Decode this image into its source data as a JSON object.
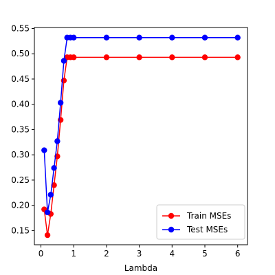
{
  "chart_data": {
    "type": "line",
    "title": "",
    "xlabel": "Lambda",
    "ylabel": "",
    "xlim": [
      -0.2,
      6.3
    ],
    "ylim": [
      0.122,
      0.552
    ],
    "xticks": [
      0,
      1,
      2,
      3,
      4,
      5,
      6
    ],
    "yticks": [
      0.15,
      0.2,
      0.25,
      0.3,
      0.35,
      0.4,
      0.45,
      0.5,
      0.55
    ],
    "xtick_labels": [
      "0",
      "1",
      "2",
      "3",
      "4",
      "5",
      "6"
    ],
    "ytick_labels": [
      "0.15",
      "0.20",
      "0.25",
      "0.30",
      "0.35",
      "0.40",
      "0.45",
      "0.50",
      "0.55"
    ],
    "grid": false,
    "legend_position": "lower-right",
    "x": [
      0.1,
      0.2,
      0.3,
      0.4,
      0.5,
      0.6,
      0.7,
      0.8,
      0.9,
      1,
      2,
      3,
      4,
      5,
      6
    ],
    "series": [
      {
        "name": "Train MSEs",
        "color": "#ff0000",
        "marker": "circle",
        "values": [
          0.192,
          0.141,
          0.183,
          0.24,
          0.297,
          0.369,
          0.447,
          0.493,
          0.493,
          0.493,
          0.493,
          0.493,
          0.493,
          0.493,
          0.493
        ]
      },
      {
        "name": "Test MSEs",
        "color": "#0000ff",
        "marker": "circle",
        "values": [
          0.309,
          0.186,
          0.221,
          0.274,
          0.327,
          0.403,
          0.486,
          0.532,
          0.532,
          0.532,
          0.532,
          0.532,
          0.532,
          0.532,
          0.532
        ]
      }
    ]
  }
}
